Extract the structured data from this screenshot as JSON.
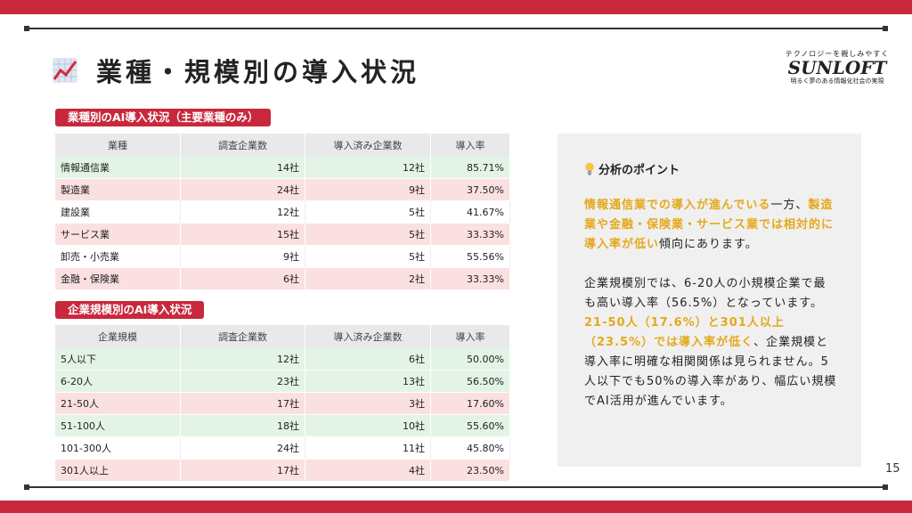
{
  "page": {
    "title": "業種・規模別の導入状況",
    "page_number": "15"
  },
  "logo": {
    "tagline_top": "テクノロジーを親しみやすく",
    "brand": "SUNLOFT",
    "tagline_bottom": "明るく夢のある情報化社会の実現"
  },
  "industry": {
    "label": "業種別のAI導入状況（主要業種のみ）",
    "headers": [
      "業種",
      "調査企業数",
      "導入済み企業数",
      "導入率"
    ],
    "rows": [
      [
        "情報通信業",
        "14社",
        "12社",
        "85.71%"
      ],
      [
        "製造業",
        "24社",
        "9社",
        "37.50%"
      ],
      [
        "建設業",
        "12社",
        "5社",
        "41.67%"
      ],
      [
        "サービス業",
        "15社",
        "5社",
        "33.33%"
      ],
      [
        "卸売・小売業",
        "9社",
        "5社",
        "55.56%"
      ],
      [
        "金融・保険業",
        "6社",
        "2社",
        "33.33%"
      ]
    ]
  },
  "scale": {
    "label": "企業規模別のAI導入状況",
    "headers": [
      "企業規模",
      "調査企業数",
      "導入済み企業数",
      "導入率"
    ],
    "rows": [
      [
        "5人以下",
        "12社",
        "6社",
        "50.00%"
      ],
      [
        "6-20人",
        "23社",
        "13社",
        "56.50%"
      ],
      [
        "21-50人",
        "17社",
        "3社",
        "17.60%"
      ],
      [
        "51-100人",
        "18社",
        "10社",
        "55.60%"
      ],
      [
        "101-300人",
        "24社",
        "11社",
        "45.80%"
      ],
      [
        "301人以上",
        "17社",
        "4社",
        "23.50%"
      ]
    ]
  },
  "analysis": {
    "heading": "分析のポイント",
    "p1_hl1": "情報通信業での導入が進んでいる",
    "p1_t1": "一方、",
    "p1_hl2": "製造業や金融・保険業・サービス業では相対的に導入率が低い",
    "p1_t2": "傾向にあります。",
    "p2_t1": "企業規模別では、6-20人の小規模企業で最も高い導入率（56.5%）となっています。",
    "p2_hl1": "21-50人（17.6%）と301人以上（23.5%）では導入率が低く",
    "p2_t2": "、企業規模と導入率に明確な相関関係は見られません。5人以下でも50%の導入率があり、幅広い規模でAI活用が進んでいます。"
  },
  "colors": {
    "accent": "#c8283c",
    "highlight": "#e5a81b",
    "row_green": "#e3f4e6",
    "row_pink": "#fbe0e2"
  }
}
